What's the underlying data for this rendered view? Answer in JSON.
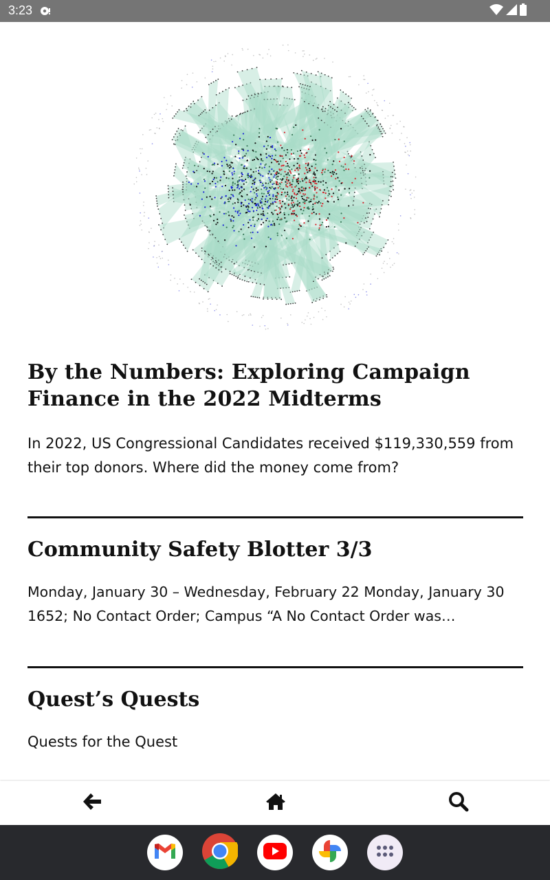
{
  "status_bar": {
    "time": "3:23",
    "icons": [
      "notification-icon",
      "wifi-icon",
      "signal-icon",
      "battery-icon"
    ]
  },
  "hero_image": {
    "description_icon": "network-graph-image",
    "colors": {
      "edges": "#a8dcc8",
      "blue_nodes": "#1a22d8",
      "red_nodes": "#d8222a",
      "dark_nodes": "#111111"
    }
  },
  "articles": [
    {
      "title": "By the Numbers: Exploring Campaign Finance in the 2022 Midterms",
      "excerpt": "In 2022, US Congressional Candidates received $119,330,559 from their top donors. Where did the money come from?"
    },
    {
      "title": "Community Safety Blotter 3/3",
      "excerpt": "Monday, January 30 – Wednesday, February 22 Monday, January 30 1652; No Contact Order; Campus “A No Contact Order was…"
    },
    {
      "title": "Quest’s Quests",
      "excerpt": "Quests for the Quest"
    }
  ],
  "bottom_nav": {
    "items": [
      "back-arrow-icon",
      "home-icon",
      "search-icon"
    ]
  },
  "dock": {
    "apps": [
      "gmail-icon",
      "chrome-icon",
      "youtube-icon",
      "photos-icon",
      "app-drawer-icon"
    ]
  }
}
